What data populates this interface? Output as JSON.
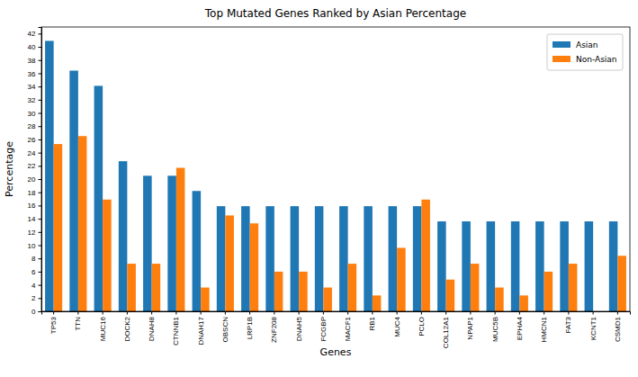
{
  "chart_data": {
    "type": "bar",
    "title": "Top Mutated Genes Ranked by Asian Percentage",
    "x_label": "Genes",
    "y_label": "Percentage",
    "categories": [
      "TP53",
      "TTN",
      "MUC16",
      "DOCK2",
      "DNAH8",
      "CTNNB1",
      "DNAH17",
      "OBSCN",
      "LRP1B",
      "ZNF208",
      "DNAH5",
      "FCGBP",
      "MACF1",
      "RB1",
      "MUC4",
      "PCLO",
      "COL12A1",
      "NPAP1",
      "MUC5B",
      "EPHA4",
      "HMCN1",
      "FAT3",
      "KCNT1",
      "CSMD1"
    ],
    "series": [
      {
        "name": "Asian",
        "color": "#1f77b4",
        "values": [
          40.9,
          36.4,
          34.1,
          22.7,
          20.5,
          20.5,
          18.2,
          15.9,
          15.9,
          15.9,
          15.9,
          15.9,
          15.9,
          15.9,
          15.9,
          15.9,
          13.6,
          13.6,
          13.6,
          13.6,
          13.6,
          13.6,
          13.6,
          13.6
        ]
      },
      {
        "name": "Non-Asian",
        "color": "#ff7f0e",
        "values": [
          25.3,
          26.5,
          16.9,
          7.2,
          7.2,
          21.7,
          3.6,
          14.5,
          13.3,
          6.0,
          6.0,
          3.6,
          7.2,
          2.4,
          9.6,
          16.9,
          4.8,
          7.2,
          3.6,
          2.4,
          6.0,
          7.2,
          0,
          8.4
        ]
      }
    ],
    "ylim": [
      0,
      43
    ],
    "yticks": [
      0,
      2,
      4,
      6,
      8,
      10,
      12,
      14,
      16,
      18,
      20,
      22,
      24,
      26,
      28,
      30,
      32,
      34,
      36,
      38,
      40,
      42
    ],
    "legend": "upper right",
    "grid": false
  }
}
